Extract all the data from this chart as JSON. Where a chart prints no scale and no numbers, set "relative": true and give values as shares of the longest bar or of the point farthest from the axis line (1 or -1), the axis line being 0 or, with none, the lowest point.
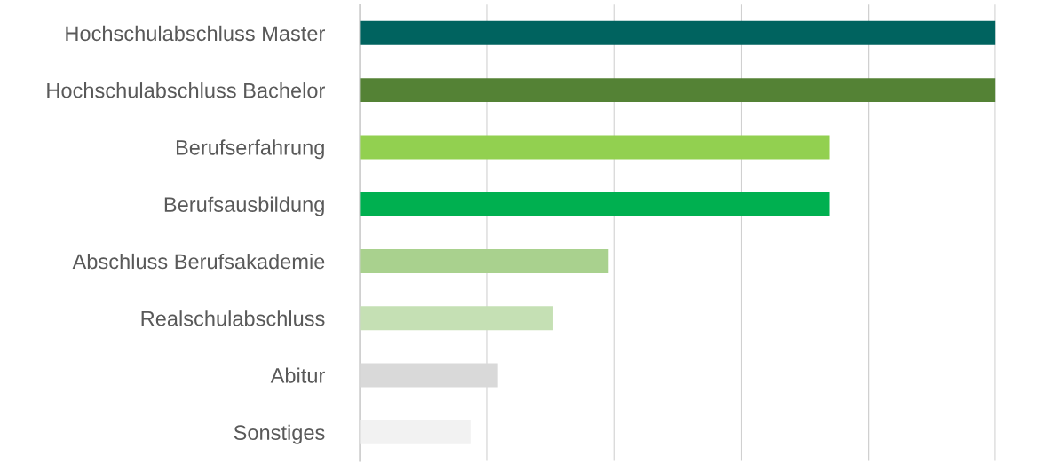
{
  "chart_data": {
    "type": "bar",
    "orientation": "horizontal",
    "relative": true,
    "grid": "x",
    "categories": [
      "Hochschulabschluss Master",
      "Hochschulabschluss Bachelor",
      "Berufserfahrung",
      "Berufsausbildung",
      "Abschluss Berufsakademie",
      "Realschulabschluss",
      "Abitur",
      "Sonstiges"
    ],
    "values": [
      1,
      1,
      0.739,
      0.739,
      0.391,
      0.304,
      0.217,
      0.174
    ],
    "colors": [
      "#00635f",
      "#548235",
      "#92d050",
      "#00b050",
      "#a9d18e",
      "#c5e0b4",
      "#d9d9d9",
      "#f2f2f2"
    ]
  }
}
